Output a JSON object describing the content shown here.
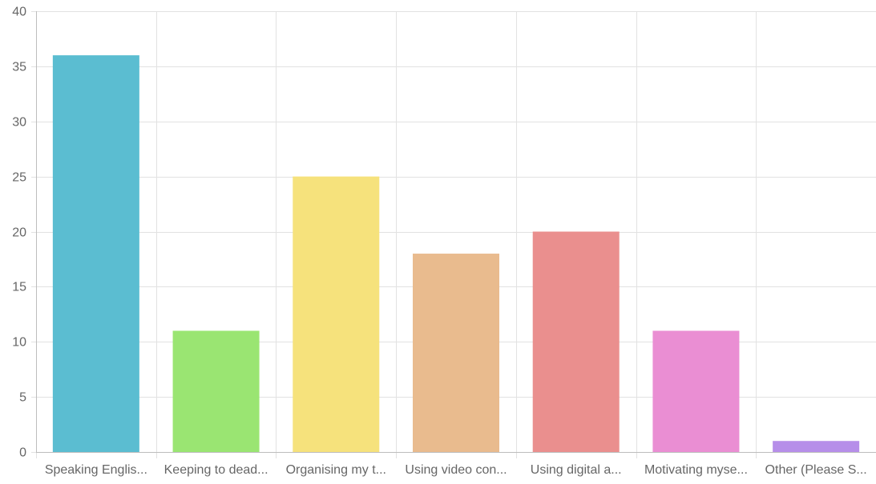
{
  "chart_data": {
    "type": "bar",
    "title": "",
    "xlabel": "",
    "ylabel": "",
    "ylim": [
      0,
      40
    ],
    "yticks": [
      0,
      5,
      10,
      15,
      20,
      25,
      30,
      35,
      40
    ],
    "grid": true,
    "legend": "none",
    "categories": [
      "Speaking Englis...",
      "Keeping to dead...",
      "Organising my t...",
      "Using video con...",
      "Using digital a...",
      "Motivating myse...",
      "Other (Please S..."
    ],
    "values": [
      36,
      11,
      25,
      18,
      20,
      11,
      1
    ],
    "colors": [
      "#5bbdd1",
      "#9ae572",
      "#f6e27c",
      "#e9bb8e",
      "#ea8f8e",
      "#ea8ed3",
      "#b68ee9"
    ]
  }
}
